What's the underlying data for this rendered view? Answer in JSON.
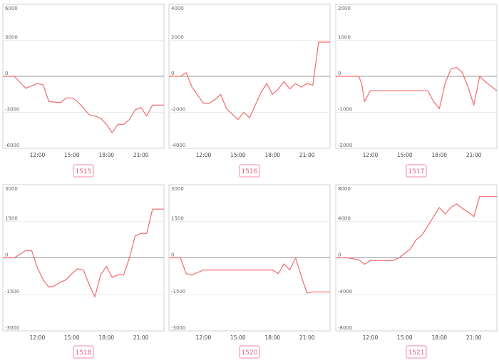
{
  "chart_data": [
    {
      "type": "line",
      "label": "1515",
      "ylim": [
        -6000,
        6000
      ],
      "yticks": [
        6000,
        3000,
        0,
        -3000,
        -6000
      ],
      "x": [
        "9:00",
        "10:00",
        "11:00",
        "12:00",
        "12:30",
        "13:00",
        "14:00",
        "14:30",
        "15:00",
        "15:30",
        "16:30",
        "17:00",
        "17:30",
        "18:00",
        "18:30",
        "19:00",
        "19:30",
        "20:00",
        "20:30",
        "21:00",
        "21:30",
        "22:00",
        "23:00"
      ],
      "y": [
        0,
        0,
        -1000,
        -600,
        -700,
        -2100,
        -2200,
        -1800,
        -1800,
        -2100,
        -3200,
        -3300,
        -3500,
        -4000,
        -4700,
        -4000,
        -4000,
        -3600,
        -2800,
        -2600,
        -3300,
        -2400,
        -2400
      ]
    },
    {
      "type": "line",
      "label": "1516",
      "ylim": [
        -4000,
        4000
      ],
      "yticks": [
        4000,
        2000,
        0,
        -2000,
        -4000
      ],
      "x": [
        "9:00",
        "10:00",
        "10:30",
        "11:00",
        "12:00",
        "12:30",
        "13:00",
        "13:30",
        "14:00",
        "15:00",
        "15:30",
        "16:00",
        "16:30",
        "17:00",
        "17:30",
        "18:00",
        "18:30",
        "19:00",
        "19:30",
        "20:00",
        "20:30",
        "21:00",
        "21:30",
        "22:00",
        "23:00"
      ],
      "y": [
        0,
        0,
        200,
        -600,
        -1500,
        -1500,
        -1300,
        -1000,
        -1800,
        -2400,
        -2000,
        -2300,
        -1600,
        -900,
        -400,
        -1000,
        -700,
        -300,
        -700,
        -400,
        -600,
        -400,
        -500,
        1900,
        1900
      ]
    },
    {
      "type": "line",
      "label": "1517",
      "ylim": [
        -2000,
        2000
      ],
      "yticks": [
        2000,
        1000,
        0,
        -1000,
        -2000
      ],
      "x": [
        "9:00",
        "10:00",
        "11:00",
        "11:15",
        "11:30",
        "12:00",
        "13:00",
        "14:00",
        "15:00",
        "16:00",
        "17:00",
        "17:30",
        "18:00",
        "18:30",
        "19:00",
        "19:30",
        "20:00",
        "20:30",
        "21:00",
        "21:30",
        "22:00",
        "23:00"
      ],
      "y": [
        0,
        0,
        0,
        -200,
        -700,
        -400,
        -400,
        -400,
        -400,
        -400,
        -400,
        -700,
        -900,
        -200,
        200,
        250,
        100,
        -300,
        -800,
        0,
        -150,
        -400
      ]
    },
    {
      "type": "line",
      "label": "1518",
      "ylim": [
        -3000,
        3000
      ],
      "yticks": [
        3000,
        1500,
        0,
        -1500,
        -3000
      ],
      "x": [
        "9:00",
        "10:00",
        "11:00",
        "11:30",
        "12:00",
        "12:30",
        "13:00",
        "13:30",
        "14:00",
        "14:30",
        "15:00",
        "15:30",
        "16:00",
        "16:30",
        "17:00",
        "17:30",
        "18:00",
        "18:30",
        "19:00",
        "19:30",
        "20:00",
        "20:30",
        "21:00",
        "21:30",
        "22:00",
        "23:00"
      ],
      "y": [
        0,
        0,
        300,
        300,
        -400,
        -900,
        -1200,
        -1150,
        -1000,
        -900,
        -650,
        -450,
        -500,
        -1100,
        -1600,
        -700,
        -350,
        -800,
        -700,
        -700,
        0,
        900,
        1000,
        1000,
        2000,
        2000
      ]
    },
    {
      "type": "line",
      "label": "1520",
      "ylim": [
        -3000,
        3000
      ],
      "yticks": [
        3000,
        1500,
        0,
        -1500,
        -3000
      ],
      "x": [
        "9:00",
        "10:00",
        "10:30",
        "11:00",
        "11:30",
        "12:00",
        "13:00",
        "14:00",
        "15:00",
        "16:00",
        "17:00",
        "18:00",
        "18:30",
        "19:00",
        "19:30",
        "20:00",
        "20:30",
        "21:00",
        "21:30",
        "22:00",
        "23:00"
      ],
      "y": [
        0,
        0,
        -650,
        -700,
        -600,
        -500,
        -500,
        -500,
        -500,
        -500,
        -500,
        -500,
        -650,
        -250,
        -500,
        0,
        -750,
        -1450,
        -1400,
        -1400,
        -1400
      ]
    },
    {
      "type": "line",
      "label": "1521",
      "ylim": [
        -8000,
        8000
      ],
      "yticks": [
        8000,
        4000,
        0,
        -4000,
        -8000
      ],
      "x": [
        "9:00",
        "10:00",
        "11:00",
        "11:30",
        "12:00",
        "13:00",
        "14:00",
        "14:30",
        "15:00",
        "15:30",
        "16:00",
        "16:30",
        "17:00",
        "17:30",
        "18:00",
        "18:30",
        "19:00",
        "19:30",
        "20:00",
        "20:30",
        "21:00",
        "21:30",
        "22:00",
        "23:00"
      ],
      "y": [
        0,
        0,
        -200,
        -700,
        -300,
        -300,
        -300,
        0,
        500,
        1000,
        2000,
        2500,
        3500,
        4500,
        5500,
        4800,
        5500,
        5900,
        5400,
        5000,
        4500,
        6700,
        6700,
        6700
      ]
    }
  ],
  "x_axis_ticks": [
    "12:00",
    "15:00",
    "18:00",
    "21:00"
  ],
  "colors": {
    "series": "#f26a6a",
    "badge_border": "#f08aa8",
    "badge_text": "#e0607e"
  }
}
